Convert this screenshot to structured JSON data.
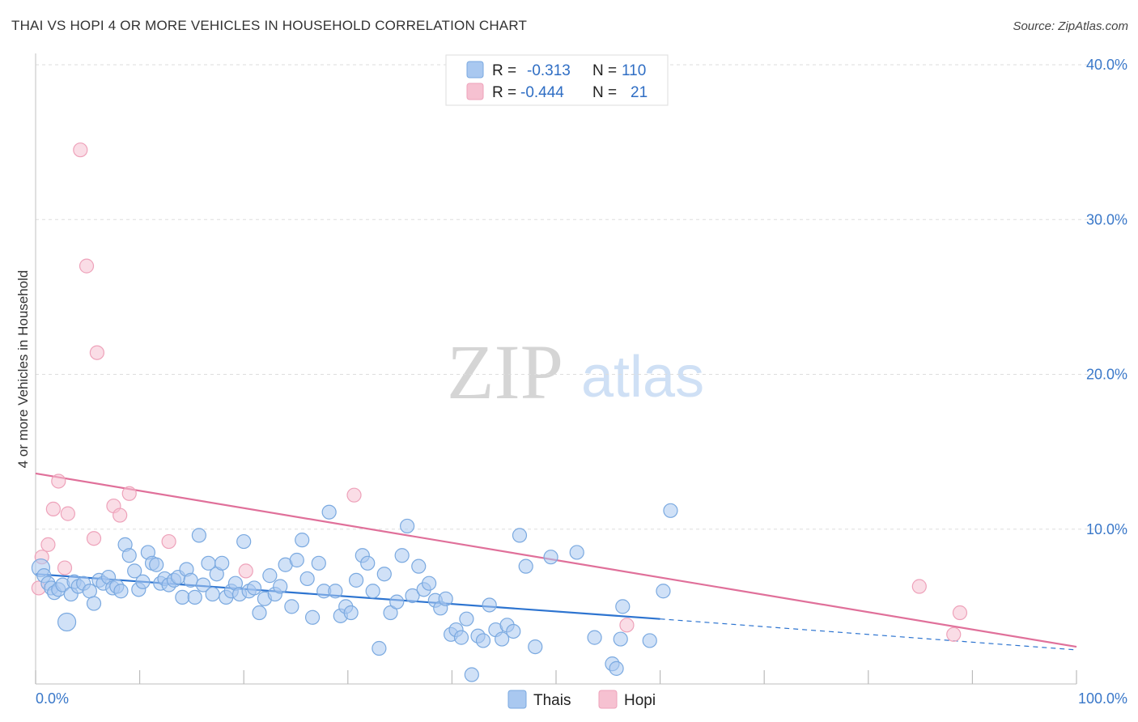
{
  "title": "THAI VS HOPI 4 OR MORE VEHICLES IN HOUSEHOLD CORRELATION CHART",
  "source": "Source: ZipAtlas.com",
  "watermark": {
    "zip": "ZIP",
    "atlas": "atlas"
  },
  "colors": {
    "thai_fill": "#a9c8f0",
    "thai_stroke": "#7aa9e0",
    "thai_line": "#2d74d0",
    "hopi_fill": "#f6c1d1",
    "hopi_stroke": "#eea2ba",
    "hopi_line": "#e0709a",
    "grid": "#dddddd",
    "axis_text": "#3a78c9"
  },
  "legend": {
    "thai": {
      "r_label": "R =",
      "r_value": "-0.313",
      "n_label": "N =",
      "n_value": "110"
    },
    "hopi": {
      "r_label": "R =",
      "r_value": "-0.444",
      "n_label": "N =",
      "n_value": "21"
    }
  },
  "chart_data": {
    "type": "scatter",
    "title": "THAI VS HOPI 4 OR MORE VEHICLES IN HOUSEHOLD CORRELATION CHART",
    "xlabel": "",
    "ylabel": "4 or more Vehicles in Household",
    "xlim": [
      0,
      100
    ],
    "ylim": [
      0,
      40
    ],
    "x_tick_labels": [
      "0.0%",
      "100.0%"
    ],
    "y_ticks": [
      10,
      20,
      30,
      40
    ],
    "y_tick_labels": [
      "10.0%",
      "20.0%",
      "30.0%",
      "40.0%"
    ],
    "grid": true,
    "series": [
      {
        "name": "Thais",
        "r": -0.313,
        "n": 110,
        "trend": {
          "x0": 0,
          "y0": 7.1,
          "x1": 60,
          "y1": 4.2,
          "dash_to_x": 100,
          "dash_to_y": 2.2
        },
        "points": [
          [
            0.5,
            7.5
          ],
          [
            0.8,
            7
          ],
          [
            1.2,
            6.5
          ],
          [
            1.5,
            6.2
          ],
          [
            1.8,
            5.9
          ],
          [
            2.2,
            6.1
          ],
          [
            2.6,
            6.4
          ],
          [
            3,
            4
          ],
          [
            3.4,
            5.8
          ],
          [
            3.7,
            6.6
          ],
          [
            4.1,
            6.3
          ],
          [
            4.6,
            6.5
          ],
          [
            5.2,
            6
          ],
          [
            5.6,
            5.2
          ],
          [
            6.1,
            6.7
          ],
          [
            6.5,
            6.5
          ],
          [
            7,
            6.9
          ],
          [
            7.4,
            6.2
          ],
          [
            7.8,
            6.3
          ],
          [
            8.2,
            6
          ],
          [
            8.6,
            9.0
          ],
          [
            9,
            8.3
          ],
          [
            9.5,
            7.3
          ],
          [
            9.9,
            6.1
          ],
          [
            10.3,
            6.6
          ],
          [
            10.8,
            8.5
          ],
          [
            11.2,
            7.8
          ],
          [
            11.6,
            7.7
          ],
          [
            12,
            6.5
          ],
          [
            12.4,
            6.8
          ],
          [
            12.8,
            6.4
          ],
          [
            13.3,
            6.7
          ],
          [
            13.7,
            6.9
          ],
          [
            14.1,
            5.6
          ],
          [
            14.5,
            7.4
          ],
          [
            14.9,
            6.7
          ],
          [
            15.3,
            5.6
          ],
          [
            15.7,
            9.6
          ],
          [
            16.1,
            6.4
          ],
          [
            16.6,
            7.8
          ],
          [
            17,
            5.8
          ],
          [
            17.4,
            7.1
          ],
          [
            17.9,
            7.8
          ],
          [
            18.3,
            5.6
          ],
          [
            18.8,
            6.0
          ],
          [
            19.2,
            6.5
          ],
          [
            19.6,
            5.8
          ],
          [
            20,
            9.2
          ],
          [
            20.5,
            6.0
          ],
          [
            21,
            6.2
          ],
          [
            21.5,
            4.6
          ],
          [
            22,
            5.5
          ],
          [
            22.5,
            7.0
          ],
          [
            23,
            5.8
          ],
          [
            23.5,
            6.3
          ],
          [
            24,
            7.7
          ],
          [
            24.6,
            5.0
          ],
          [
            25.1,
            8.0
          ],
          [
            25.6,
            9.3
          ],
          [
            26.1,
            6.8
          ],
          [
            26.6,
            4.3
          ],
          [
            27.2,
            7.8
          ],
          [
            27.7,
            6.0
          ],
          [
            28.2,
            11.1
          ],
          [
            28.8,
            6.0
          ],
          [
            29.3,
            4.4
          ],
          [
            29.8,
            5.0
          ],
          [
            30.3,
            4.6
          ],
          [
            30.8,
            6.7
          ],
          [
            31.4,
            8.3
          ],
          [
            31.9,
            7.8
          ],
          [
            32.4,
            6.0
          ],
          [
            33,
            2.3
          ],
          [
            33.5,
            7.1
          ],
          [
            34.1,
            4.6
          ],
          [
            34.7,
            5.3
          ],
          [
            35.2,
            8.3
          ],
          [
            35.7,
            10.2
          ],
          [
            36.2,
            5.7
          ],
          [
            36.8,
            7.6
          ],
          [
            37.3,
            6.1
          ],
          [
            37.8,
            6.5
          ],
          [
            38.4,
            5.4
          ],
          [
            38.9,
            4.9
          ],
          [
            39.4,
            5.5
          ],
          [
            39.9,
            3.2
          ],
          [
            40.4,
            3.5
          ],
          [
            40.9,
            3.0
          ],
          [
            41.4,
            4.2
          ],
          [
            41.9,
            0.6
          ],
          [
            42.5,
            3.1
          ],
          [
            43,
            2.8
          ],
          [
            43.6,
            5.1
          ],
          [
            44.2,
            3.5
          ],
          [
            44.8,
            2.9
          ],
          [
            45.3,
            3.8
          ],
          [
            45.9,
            3.4
          ],
          [
            46.5,
            9.6
          ],
          [
            47.1,
            7.6
          ],
          [
            48,
            2.4
          ],
          [
            49.5,
            8.2
          ],
          [
            52,
            8.5
          ],
          [
            53.7,
            3.0
          ],
          [
            55.4,
            1.3
          ],
          [
            55.8,
            1.0
          ],
          [
            56.2,
            2.9
          ],
          [
            56.4,
            5.0
          ],
          [
            59,
            2.8
          ],
          [
            60.3,
            6.0
          ],
          [
            61,
            11.2
          ]
        ]
      },
      {
        "name": "Hopi",
        "r": -0.444,
        "n": 21,
        "trend": {
          "x0": 0,
          "y0": 13.6,
          "x1": 100,
          "y1": 2.4
        },
        "points": [
          [
            0.3,
            6.2
          ],
          [
            0.6,
            8.2
          ],
          [
            1.2,
            9
          ],
          [
            1.7,
            11.3
          ],
          [
            2.2,
            13.1
          ],
          [
            2.8,
            7.5
          ],
          [
            3.1,
            11
          ],
          [
            4.3,
            34.5
          ],
          [
            4.9,
            27
          ],
          [
            5.6,
            9.4
          ],
          [
            5.9,
            21.4
          ],
          [
            7.5,
            11.5
          ],
          [
            8.1,
            10.9
          ],
          [
            9,
            12.3
          ],
          [
            12.8,
            9.2
          ],
          [
            20.2,
            7.3
          ],
          [
            30.6,
            12.2
          ],
          [
            56.8,
            3.8
          ],
          [
            84.9,
            6.3
          ],
          [
            88.2,
            3.2
          ],
          [
            88.8,
            4.6
          ]
        ]
      }
    ],
    "legend_entries": [
      "Thais",
      "Hopi"
    ]
  }
}
